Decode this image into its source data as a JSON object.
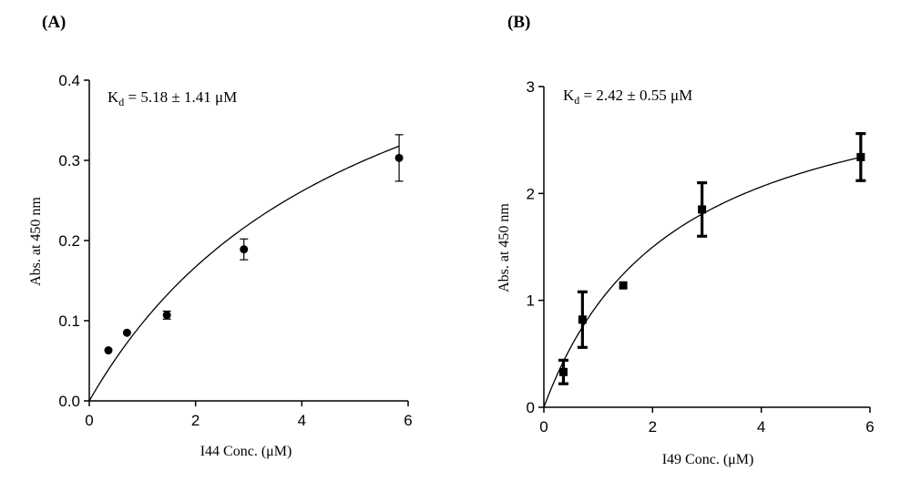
{
  "chart_data": [
    {
      "type": "scatter",
      "panel_label": "(A)",
      "annotation": {
        "prefix": "K",
        "subscript": "d",
        "text": " = 5.18 ± 1.41 μM"
      },
      "xlabel": "I44 Conc. (μM)",
      "ylabel": "Abs. at 450 nm",
      "xlim": [
        0,
        6
      ],
      "ylim": [
        0,
        0.4
      ],
      "xticks": [
        0,
        2,
        4,
        6
      ],
      "xtick_labels": [
        "0",
        "2",
        "4",
        "6"
      ],
      "yticks": [
        0,
        0.1,
        0.2,
        0.3,
        0.4
      ],
      "ytick_labels": [
        "0.0",
        "0.1",
        "0.2",
        "0.3",
        "0.4"
      ],
      "marker": "circle",
      "points": [
        {
          "x": 0.36,
          "y": 0.063,
          "err": 0
        },
        {
          "x": 0.71,
          "y": 0.085,
          "err": 0
        },
        {
          "x": 1.46,
          "y": 0.107,
          "err": 0.005
        },
        {
          "x": 2.91,
          "y": 0.189,
          "err": 0.013
        },
        {
          "x": 5.83,
          "y": 0.303,
          "err": 0.029
        }
      ],
      "fit": {
        "model": "one-site binding",
        "Bmax": 0.6,
        "Kd": 5.18
      }
    },
    {
      "type": "scatter",
      "panel_label": "(B)",
      "annotation": {
        "prefix": "K",
        "subscript": "d",
        "text": " = 2.42 ± 0.55 μM"
      },
      "xlabel": "I49 Conc. (μM)",
      "ylabel": "Abs. at 450 nm",
      "xlim": [
        0,
        6
      ],
      "ylim": [
        0,
        3
      ],
      "xticks": [
        0,
        2,
        4,
        6
      ],
      "xtick_labels": [
        "0",
        "2",
        "4",
        "6"
      ],
      "yticks": [
        0,
        1,
        2,
        3
      ],
      "ytick_labels": [
        "0",
        "1",
        "2",
        "3"
      ],
      "marker": "square",
      "points": [
        {
          "x": 0.36,
          "y": 0.33,
          "err": 0.11
        },
        {
          "x": 0.71,
          "y": 0.82,
          "err": 0.26
        },
        {
          "x": 1.46,
          "y": 1.14,
          "err": 0
        },
        {
          "x": 2.91,
          "y": 1.85,
          "err": 0.25
        },
        {
          "x": 5.83,
          "y": 2.34,
          "err": 0.22
        }
      ],
      "fit": {
        "model": "one-site binding",
        "Bmax": 3.31,
        "Kd": 2.42
      }
    }
  ]
}
